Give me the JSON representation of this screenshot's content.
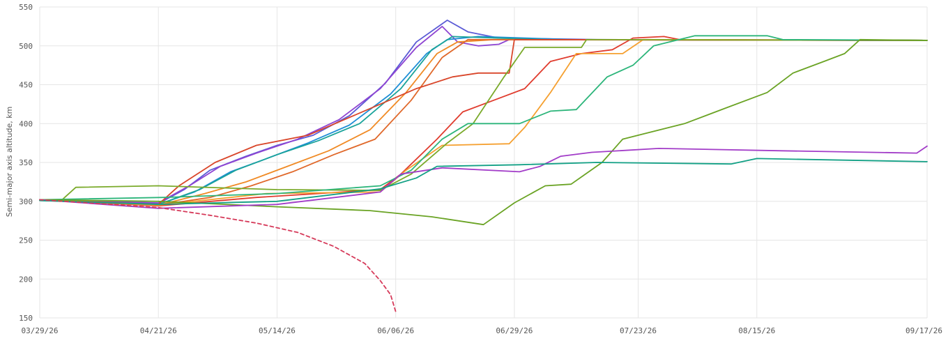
{
  "chart_data": {
    "type": "line",
    "title": "",
    "xlabel": "",
    "ylabel": "Semi-major axis altitude, km",
    "x_type": "date",
    "xlim": [
      "2026-03-29",
      "2026-09-17"
    ],
    "ylim": [
      150,
      550
    ],
    "y_ticks": [
      150,
      200,
      250,
      300,
      350,
      400,
      450,
      500,
      550
    ],
    "x_ticks": [
      {
        "date": "2026-03-29",
        "label": "03/29/26"
      },
      {
        "date": "2026-04-21",
        "label": "04/21/26"
      },
      {
        "date": "2026-05-14",
        "label": "05/14/26"
      },
      {
        "date": "2026-06-06",
        "label": "06/06/26"
      },
      {
        "date": "2026-06-29",
        "label": "06/29/26"
      },
      {
        "date": "2026-07-23",
        "label": "07/23/26"
      },
      {
        "date": "2026-08-15",
        "label": "08/15/26"
      },
      {
        "date": "2026-09-17",
        "label": "09/17/26"
      }
    ],
    "grid": true,
    "legend": "none",
    "series": [
      {
        "color": "#5b5bd6",
        "points": [
          [
            "2026-03-29",
            302
          ],
          [
            "2026-04-21",
            297
          ],
          [
            "2026-04-26",
            315
          ],
          [
            "2026-05-01",
            340
          ],
          [
            "2026-05-08",
            358
          ],
          [
            "2026-05-14",
            372
          ],
          [
            "2026-05-21",
            385
          ],
          [
            "2026-05-28",
            410
          ],
          [
            "2026-06-04",
            452
          ],
          [
            "2026-06-10",
            505
          ],
          [
            "2026-06-16",
            533
          ],
          [
            "2026-06-20",
            518
          ],
          [
            "2026-06-26",
            510
          ],
          [
            "2026-07-15",
            508
          ],
          [
            "2026-09-17",
            507
          ]
        ]
      },
      {
        "color": "#8e44d2",
        "points": [
          [
            "2026-03-29",
            302
          ],
          [
            "2026-04-21",
            298
          ],
          [
            "2026-04-27",
            320
          ],
          [
            "2026-05-03",
            345
          ],
          [
            "2026-05-10",
            362
          ],
          [
            "2026-05-18",
            380
          ],
          [
            "2026-05-26",
            405
          ],
          [
            "2026-06-03",
            445
          ],
          [
            "2026-06-10",
            498
          ],
          [
            "2026-06-15",
            525
          ],
          [
            "2026-06-18",
            505
          ],
          [
            "2026-06-22",
            500
          ],
          [
            "2026-06-26",
            502
          ],
          [
            "2026-06-28",
            508
          ],
          [
            "2026-09-17",
            507
          ]
        ]
      },
      {
        "color": "#1f8fd6",
        "points": [
          [
            "2026-03-29",
            302
          ],
          [
            "2026-04-21",
            296
          ],
          [
            "2026-04-28",
            312
          ],
          [
            "2026-05-05",
            338
          ],
          [
            "2026-05-12",
            355
          ],
          [
            "2026-05-20",
            375
          ],
          [
            "2026-05-28",
            398
          ],
          [
            "2026-06-05",
            438
          ],
          [
            "2026-06-12",
            490
          ],
          [
            "2026-06-16",
            508
          ],
          [
            "2026-06-22",
            512
          ],
          [
            "2026-07-10",
            508
          ],
          [
            "2026-09-17",
            507
          ]
        ]
      },
      {
        "color": "#1aa39a",
        "points": [
          [
            "2026-03-29",
            301
          ],
          [
            "2026-04-21",
            296
          ],
          [
            "2026-04-29",
            315
          ],
          [
            "2026-05-06",
            340
          ],
          [
            "2026-05-14",
            360
          ],
          [
            "2026-05-22",
            378
          ],
          [
            "2026-05-30",
            400
          ],
          [
            "2026-06-07",
            445
          ],
          [
            "2026-06-13",
            495
          ],
          [
            "2026-06-17",
            512
          ],
          [
            "2026-07-05",
            508
          ],
          [
            "2026-09-17",
            507
          ]
        ]
      },
      {
        "color": "#f08a24",
        "points": [
          [
            "2026-03-29",
            302
          ],
          [
            "2026-04-21",
            295
          ],
          [
            "2026-04-30",
            310
          ],
          [
            "2026-05-08",
            325
          ],
          [
            "2026-05-16",
            345
          ],
          [
            "2026-05-24",
            365
          ],
          [
            "2026-06-01",
            392
          ],
          [
            "2026-06-08",
            440
          ],
          [
            "2026-06-14",
            490
          ],
          [
            "2026-06-18",
            505
          ],
          [
            "2026-06-25",
            508
          ],
          [
            "2026-09-17",
            507
          ]
        ]
      },
      {
        "color": "#e0682a",
        "points": [
          [
            "2026-03-29",
            302
          ],
          [
            "2026-04-21",
            295
          ],
          [
            "2026-05-01",
            305
          ],
          [
            "2026-05-09",
            320
          ],
          [
            "2026-05-17",
            338
          ],
          [
            "2026-05-25",
            360
          ],
          [
            "2026-06-02",
            380
          ],
          [
            "2026-06-09",
            430
          ],
          [
            "2026-06-15",
            485
          ],
          [
            "2026-06-20",
            508
          ],
          [
            "2026-09-17",
            507
          ]
        ]
      },
      {
        "color": "#d9462a",
        "points": [
          [
            "2026-03-29",
            302
          ],
          [
            "2026-04-21",
            296
          ],
          [
            "2026-04-25",
            320
          ],
          [
            "2026-05-02",
            350
          ],
          [
            "2026-05-10",
            372
          ],
          [
            "2026-05-20",
            385
          ],
          [
            "2026-05-27",
            405
          ],
          [
            "2026-06-03",
            425
          ],
          [
            "2026-06-10",
            445
          ],
          [
            "2026-06-17",
            460
          ],
          [
            "2026-06-22",
            465
          ],
          [
            "2026-06-28",
            465
          ],
          [
            "2026-06-29",
            508
          ],
          [
            "2026-09-17",
            507
          ]
        ]
      },
      {
        "color": "#e03c2e",
        "points": [
          [
            "2026-03-29",
            302
          ],
          [
            "2026-04-21",
            294
          ],
          [
            "2026-05-10",
            305
          ],
          [
            "2026-06-03",
            315
          ],
          [
            "2026-06-07",
            335
          ],
          [
            "2026-06-14",
            380
          ],
          [
            "2026-06-19",
            415
          ],
          [
            "2026-06-25",
            430
          ],
          [
            "2026-07-01",
            445
          ],
          [
            "2026-07-06",
            480
          ],
          [
            "2026-07-12",
            490
          ],
          [
            "2026-07-18",
            495
          ],
          [
            "2026-07-22",
            510
          ],
          [
            "2026-07-28",
            512
          ],
          [
            "2026-07-31",
            508
          ],
          [
            "2026-09-17",
            507
          ]
        ]
      },
      {
        "color": "#f5a030",
        "points": [
          [
            "2026-03-29",
            302
          ],
          [
            "2026-04-21",
            295
          ],
          [
            "2026-05-12",
            310
          ],
          [
            "2026-06-03",
            312
          ],
          [
            "2026-06-08",
            340
          ],
          [
            "2026-06-15",
            372
          ],
          [
            "2026-06-28",
            374
          ],
          [
            "2026-07-01",
            395
          ],
          [
            "2026-07-06",
            440
          ],
          [
            "2026-07-11",
            490
          ],
          [
            "2026-07-20",
            490
          ],
          [
            "2026-07-24",
            508
          ],
          [
            "2026-09-17",
            507
          ]
        ]
      },
      {
        "color": "#7aaa2a",
        "points": [
          [
            "2026-03-29",
            302
          ],
          [
            "2026-04-02",
            300
          ],
          [
            "2026-04-05",
            318
          ],
          [
            "2026-04-21",
            320
          ],
          [
            "2026-05-14",
            315
          ],
          [
            "2026-06-03",
            314
          ],
          [
            "2026-06-09",
            335
          ],
          [
            "2026-06-16",
            375
          ],
          [
            "2026-06-21",
            400
          ],
          [
            "2026-06-27",
            460
          ],
          [
            "2026-07-01",
            498
          ],
          [
            "2026-07-12",
            498
          ],
          [
            "2026-07-13",
            508
          ],
          [
            "2026-09-17",
            507
          ]
        ]
      },
      {
        "color": "#2cb57a",
        "points": [
          [
            "2026-03-29",
            302
          ],
          [
            "2026-04-22",
            305
          ],
          [
            "2026-05-14",
            310
          ],
          [
            "2026-06-03",
            320
          ],
          [
            "2026-06-09",
            340
          ],
          [
            "2026-06-15",
            380
          ],
          [
            "2026-06-20",
            400
          ],
          [
            "2026-06-30",
            400
          ],
          [
            "2026-07-06",
            416
          ],
          [
            "2026-07-11",
            418
          ],
          [
            "2026-07-17",
            460
          ],
          [
            "2026-07-22",
            475
          ],
          [
            "2026-07-26",
            500
          ],
          [
            "2026-08-03",
            513
          ],
          [
            "2026-08-17",
            513
          ],
          [
            "2026-08-20",
            508
          ],
          [
            "2026-09-17",
            507
          ]
        ]
      },
      {
        "color": "#6aa324",
        "points": [
          [
            "2026-03-29",
            302
          ],
          [
            "2026-04-21",
            300
          ],
          [
            "2026-05-14",
            293
          ],
          [
            "2026-06-01",
            288
          ],
          [
            "2026-06-13",
            280
          ],
          [
            "2026-06-23",
            270
          ],
          [
            "2026-06-29",
            298
          ],
          [
            "2026-07-05",
            320
          ],
          [
            "2026-07-10",
            322
          ],
          [
            "2026-07-16",
            350
          ],
          [
            "2026-07-20",
            380
          ],
          [
            "2026-07-23",
            385
          ],
          [
            "2026-08-01",
            400
          ],
          [
            "2026-08-09",
            420
          ],
          [
            "2026-08-17",
            440
          ],
          [
            "2026-08-22",
            465
          ],
          [
            "2026-08-28",
            480
          ],
          [
            "2026-09-01",
            490
          ],
          [
            "2026-09-04",
            508
          ],
          [
            "2026-09-17",
            507
          ]
        ]
      },
      {
        "color": "#a23cc8",
        "points": [
          [
            "2026-03-29",
            302
          ],
          [
            "2026-04-21",
            291
          ],
          [
            "2026-05-14",
            296
          ],
          [
            "2026-06-03",
            312
          ],
          [
            "2026-06-07",
            335
          ],
          [
            "2026-06-15",
            343
          ],
          [
            "2026-06-30",
            338
          ],
          [
            "2026-07-04",
            345
          ],
          [
            "2026-07-08",
            358
          ],
          [
            "2026-07-14",
            363
          ],
          [
            "2026-07-27",
            368
          ],
          [
            "2026-08-20",
            365
          ],
          [
            "2026-09-15",
            362
          ],
          [
            "2026-09-17",
            371
          ]
        ]
      },
      {
        "color": "#12a085",
        "points": [
          [
            "2026-03-29",
            301
          ],
          [
            "2026-04-21",
            296
          ],
          [
            "2026-05-14",
            300
          ],
          [
            "2026-06-03",
            316
          ],
          [
            "2026-06-10",
            330
          ],
          [
            "2026-06-14",
            345
          ],
          [
            "2026-06-30",
            347
          ],
          [
            "2026-07-15",
            350
          ],
          [
            "2026-08-10",
            348
          ],
          [
            "2026-08-15",
            355
          ],
          [
            "2026-09-17",
            351
          ]
        ]
      },
      {
        "color": "#d63a5a",
        "dashed": true,
        "points": [
          [
            "2026-03-29",
            302
          ],
          [
            "2026-04-21",
            292
          ],
          [
            "2026-05-01",
            282
          ],
          [
            "2026-05-10",
            272
          ],
          [
            "2026-05-18",
            260
          ],
          [
            "2026-05-25",
            242
          ],
          [
            "2026-05-31",
            220
          ],
          [
            "2026-06-03",
            198
          ],
          [
            "2026-06-05",
            180
          ],
          [
            "2026-06-06",
            158
          ]
        ]
      }
    ]
  }
}
